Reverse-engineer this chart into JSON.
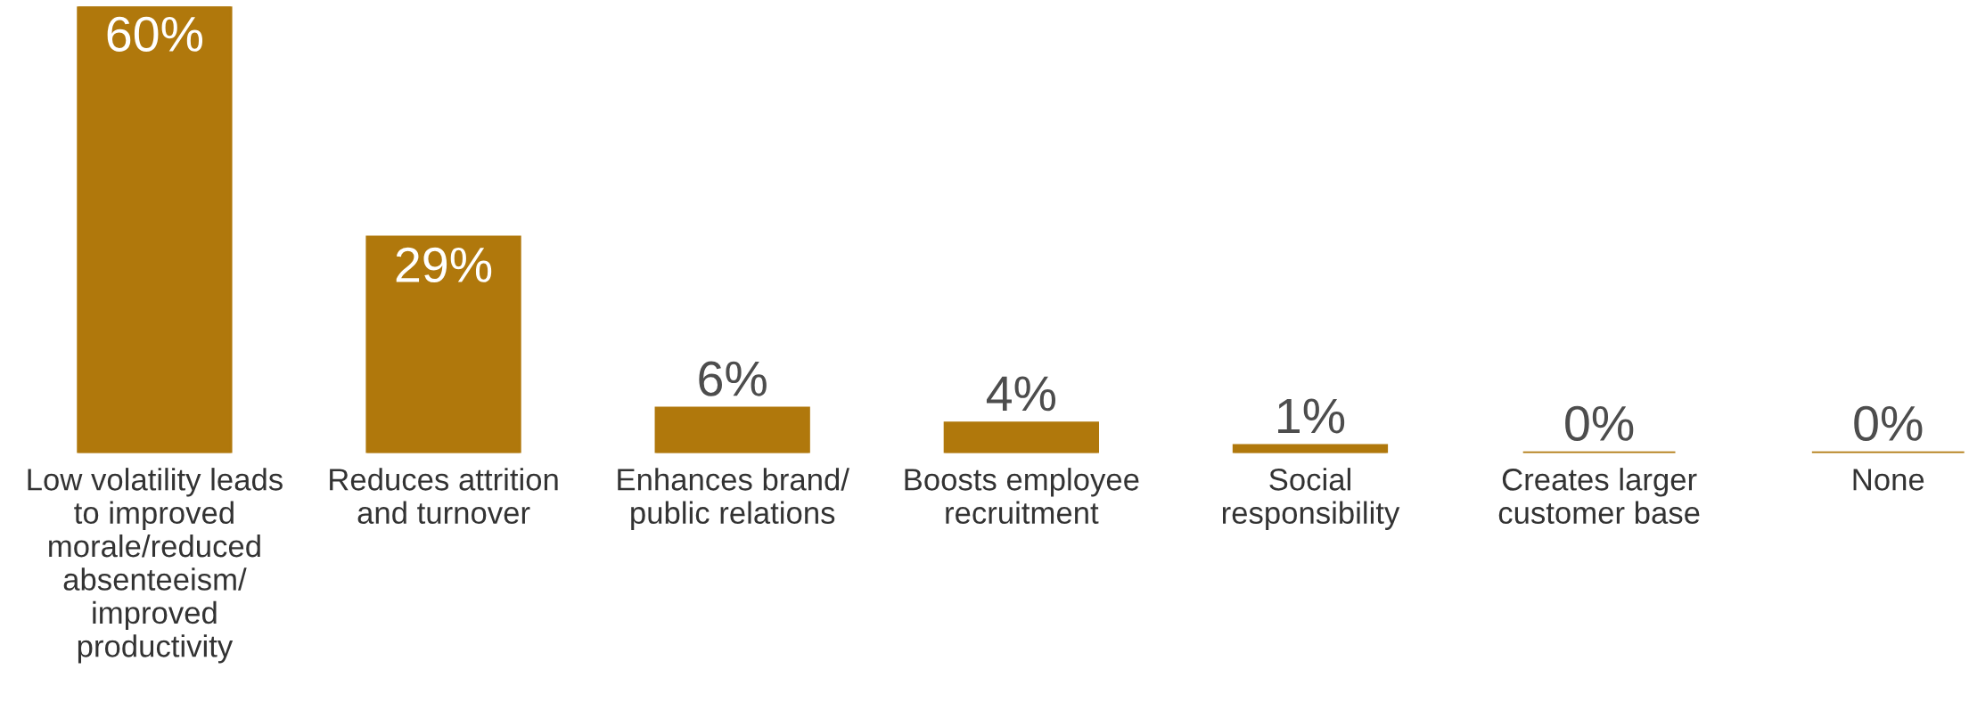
{
  "chart_data": {
    "type": "bar",
    "categories": [
      "Low volatility leads\nto improved\nmorale/reduced\nabsenteeism/\nimproved\nproductivity",
      "Reduces attrition\nand turnover",
      "Enhances brand/\npublic relations",
      "Boosts employee\nrecruitment",
      "Social\nresponsibility",
      "Creates larger\ncustomer base",
      "None"
    ],
    "values": [
      60,
      29,
      6,
      4,
      1,
      0,
      0
    ],
    "value_labels": [
      "60%",
      "29%",
      "6%",
      "4%",
      "1%",
      "0%",
      "0%"
    ],
    "color": "#b0780c",
    "ylim": [
      0,
      60
    ],
    "grid": false,
    "legend": false
  }
}
